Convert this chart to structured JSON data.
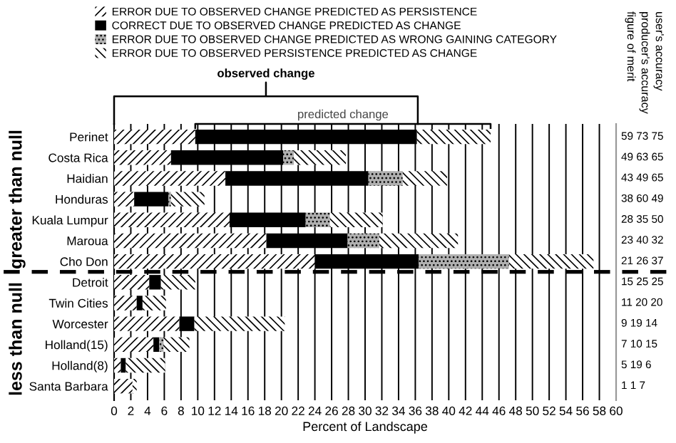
{
  "chart_data": {
    "type": "bar",
    "orientation": "horizontal",
    "stacked": true,
    "categories": [
      "Perinet",
      "Costa Rica",
      "Haidian",
      "Honduras",
      "Kuala Lumpur",
      "Maroua",
      "Cho Don",
      "Detroit",
      "Twin Cities",
      "Worcester",
      "Holland(15)",
      "Holland(8)",
      "Santa Barbara"
    ],
    "series": [
      {
        "name": "ERROR DUE TO OBSERVED CHANGE PREDICTED AS PERSISTENCE",
        "color": "#ffffff",
        "values": [
          9.7,
          6.8,
          13.3,
          2.4,
          13.8,
          18.2,
          24,
          4.2,
          2.7,
          7.8,
          4.7,
          0.8,
          2.2
        ]
      },
      {
        "name": "CORRECT DUE TO OBSERVED CHANGE PREDICTED AS CHANGE",
        "color": "#000000",
        "values": [
          26.5,
          13.4,
          17.1,
          4.1,
          9.1,
          9.7,
          12.4,
          1.4,
          0.7,
          1.8,
          0.7,
          0.6,
          0
        ]
      },
      {
        "name": "ERROR DUE TO OBSERVED CHANGE PREDICTED AS WRONG GAINING CATEGORY",
        "color": "#b0b0b0",
        "values": [
          0,
          1.3,
          4.1,
          0.3,
          2.9,
          3.8,
          10.8,
          0,
          0,
          0,
          0.5,
          0,
          0
        ]
      },
      {
        "name": "ERROR DUE TO OBSERVED PERSISTENCE PREDICTED AS CHANGE",
        "color": "#ffffff",
        "values": [
          8.8,
          6.2,
          5.3,
          4.0,
          6.3,
          9.4,
          10.1,
          4.1,
          2.8,
          10.8,
          3.1,
          4.7,
          0.5
        ]
      }
    ],
    "xlabel": "Percent of Landscape",
    "xlim": [
      0,
      60
    ],
    "xticks": [
      0,
      2,
      4,
      6,
      8,
      10,
      12,
      14,
      16,
      18,
      20,
      22,
      24,
      26,
      28,
      30,
      32,
      34,
      36,
      38,
      40,
      42,
      44,
      46,
      48,
      50,
      52,
      54,
      56,
      58,
      60
    ],
    "grid": "x",
    "legend": "top",
    "annotations": [
      "observed change",
      "predicted change",
      "figure of merit",
      "producer's accuracy",
      "user's accuracy",
      "greater than null",
      "less than null",
      "59 73 75",
      "49 63 65",
      "43 49 65",
      "38 60 49",
      "28 35 50",
      "23 40 32",
      "21 26 37",
      "15 25 25",
      "11 20 20",
      "9 19 14",
      "7 10 15",
      "5 19 6",
      "1 1 7"
    ]
  }
}
